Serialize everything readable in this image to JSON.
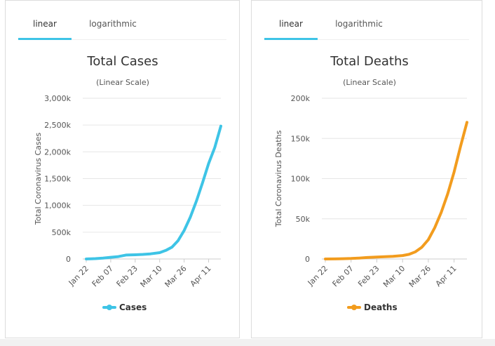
{
  "colors": {
    "cases": "#3ec4e6",
    "deaths": "#f29c1e",
    "tab_underline": "#3ec4e6",
    "grid": "#e6e6e6"
  },
  "charts": [
    {
      "tabs": [
        {
          "label": "linear",
          "active": true
        },
        {
          "label": "logarithmic",
          "active": false
        }
      ],
      "title": "Total Cases",
      "subtitle": "(Linear Scale)",
      "ylabel": "Total Coronavirus Cases",
      "legend": "Cases"
    },
    {
      "tabs": [
        {
          "label": "linear",
          "active": true
        },
        {
          "label": "logarithmic",
          "active": false
        }
      ],
      "title": "Total Deaths",
      "subtitle": "(Linear Scale)",
      "ylabel": "Total Coronavirus Deaths",
      "legend": "Deaths"
    }
  ],
  "chart_data": [
    {
      "type": "line",
      "title": "Total Cases",
      "subtitle": "(Linear Scale)",
      "ylabel": "Total Coronavirus Cases",
      "x_ticks": [
        "Jan 22",
        "Feb 07",
        "Feb 23",
        "Mar 10",
        "Mar 26",
        "Apr 11"
      ],
      "y_ticks": [
        "0",
        "500k",
        "1,000k",
        "1,500k",
        "2,000k",
        "2,500k",
        "3,000k"
      ],
      "ylim": [
        0,
        3000000
      ],
      "grid": true,
      "legend_position": "bottom",
      "series": [
        {
          "name": "Cases",
          "x": [
            "Jan 22",
            "Jan 28",
            "Feb 02",
            "Feb 07",
            "Feb 12",
            "Feb 17",
            "Feb 23",
            "Feb 28",
            "Mar 04",
            "Mar 10",
            "Mar 14",
            "Mar 18",
            "Mar 22",
            "Mar 26",
            "Mar 30",
            "Apr 03",
            "Apr 07",
            "Apr 11",
            "Apr 15",
            "Apr 19"
          ],
          "values": [
            600,
            6000,
            17000,
            31000,
            45000,
            73000,
            79000,
            85000,
            95000,
            118000,
            160000,
            220000,
            340000,
            530000,
            780000,
            1080000,
            1420000,
            1780000,
            2080000,
            2480000
          ]
        }
      ]
    },
    {
      "type": "line",
      "title": "Total Deaths",
      "subtitle": "(Linear Scale)",
      "ylabel": "Total Coronavirus Deaths",
      "x_ticks": [
        "Jan 22",
        "Feb 07",
        "Feb 23",
        "Mar 10",
        "Mar 26",
        "Apr 11"
      ],
      "y_ticks": [
        "0",
        "50k",
        "100k",
        "150k",
        "200k"
      ],
      "ylim": [
        0,
        200000
      ],
      "grid": true,
      "legend_position": "bottom",
      "series": [
        {
          "name": "Deaths",
          "x": [
            "Jan 22",
            "Jan 28",
            "Feb 02",
            "Feb 07",
            "Feb 12",
            "Feb 17",
            "Feb 23",
            "Feb 28",
            "Mar 04",
            "Mar 10",
            "Mar 14",
            "Mar 18",
            "Mar 22",
            "Mar 26",
            "Mar 30",
            "Apr 03",
            "Apr 07",
            "Apr 11",
            "Apr 15",
            "Apr 19"
          ],
          "values": [
            17,
            130,
            360,
            640,
            1120,
            1870,
            2460,
            2920,
            3300,
            4300,
            5800,
            8900,
            14700,
            24000,
            39000,
            58000,
            81000,
            108000,
            140000,
            170000
          ]
        }
      ]
    }
  ]
}
